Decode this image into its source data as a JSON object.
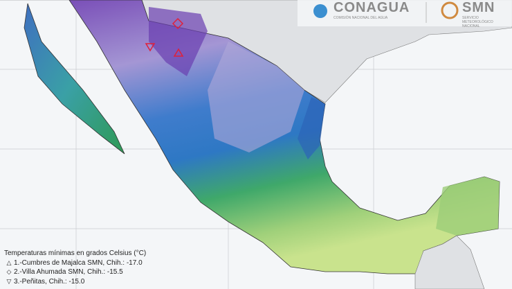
{
  "logos": {
    "conagua": {
      "name": "CONAGUA",
      "subtitle": "COMISIÓN NACIONAL DEL AGUA"
    },
    "smn": {
      "name": "SMN",
      "subtitle": "SERVICIO METEOROLÓGICO NACIONAL"
    }
  },
  "legend": {
    "title": "Temperaturas mínimas en grados Celsius (°C)",
    "entries": [
      "1.-Cumbres de Majalca SMN, Chih.: -17.0",
      "2.-Villa Ahumada SMN, Chih.: -15.5",
      "3.-Peñitas, Chih.: -15.0"
    ]
  }
}
